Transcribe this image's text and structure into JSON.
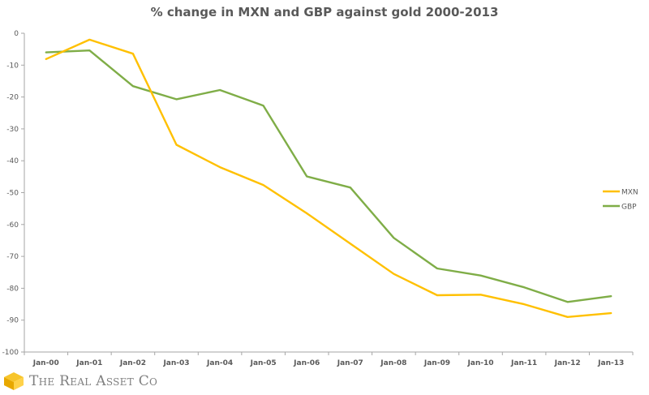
{
  "chart_data": {
    "type": "line",
    "title": "% change in MXN and GBP against gold 2000-2013",
    "xlabel": "",
    "ylabel": "",
    "categories": [
      "Jan-00",
      "Jan-01",
      "Jan-02",
      "Jan-03",
      "Jan-04",
      "Jan-05",
      "Jan-06",
      "Jan-07",
      "Jan-08",
      "Jan-09",
      "Jan-10",
      "Jan-11",
      "Jan-12",
      "Jan-13"
    ],
    "ylim": [
      -100,
      0
    ],
    "yticks": [
      0,
      -10,
      -20,
      -30,
      -40,
      -50,
      -60,
      -70,
      -80,
      -90,
      -100
    ],
    "grid": false,
    "legend_position": "right",
    "series": [
      {
        "name": "MXN",
        "color": "#FFC000",
        "values": [
          -8.1,
          -2.0,
          -6.4,
          -35.0,
          -42.0,
          -47.6,
          -56.5,
          -66.0,
          -75.5,
          -82.2,
          -82.0,
          -85.0,
          -89.0,
          -87.8
        ]
      },
      {
        "name": "GBP",
        "color": "#7FAD47",
        "values": [
          -6.0,
          -5.4,
          -16.6,
          -20.7,
          -17.8,
          -22.7,
          -44.9,
          -48.4,
          -64.2,
          -73.8,
          -76.0,
          -79.7,
          -84.3,
          -82.5
        ]
      }
    ]
  },
  "branding": {
    "logo_text": "The Real Asset Co",
    "logo_color": "#F2B705"
  }
}
